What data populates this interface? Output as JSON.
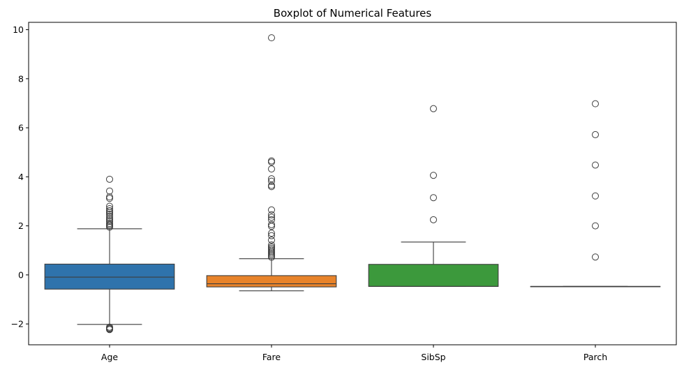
{
  "chart_data": {
    "type": "box",
    "title": "Boxplot of Numerical Features",
    "xlabel": "",
    "ylabel": "",
    "ylim": [
      -2.85,
      10.3
    ],
    "yticks": [
      -2,
      0,
      2,
      4,
      6,
      8,
      10
    ],
    "ytick_labels": [
      "−2",
      "0",
      "2",
      "4",
      "6",
      "8",
      "10"
    ],
    "grid": false,
    "categories": [
      "Age",
      "Fare",
      "SibSp",
      "Parch"
    ],
    "series": [
      {
        "color": "#2f73ac",
        "q1": -0.58,
        "median": -0.09,
        "q3": 0.44,
        "whisker_low": -2.02,
        "whisker_high": 1.88,
        "outliers": [
          -2.13,
          -2.17,
          -2.2,
          -2.23,
          1.95,
          2.0,
          2.05,
          2.1,
          2.18,
          2.25,
          2.32,
          2.4,
          2.48,
          2.55,
          2.62,
          2.7,
          2.8,
          3.12,
          3.18,
          3.42,
          3.9
        ]
      },
      {
        "color": "#e8832a",
        "q1": -0.49,
        "median": -0.36,
        "q3": -0.03,
        "whisker_low": -0.65,
        "whisker_high": 0.66,
        "outliers": [
          0.72,
          0.78,
          0.84,
          0.9,
          0.96,
          1.02,
          1.08,
          1.14,
          1.22,
          1.42,
          1.6,
          1.7,
          1.98,
          2.05,
          2.25,
          2.35,
          2.45,
          2.65,
          3.6,
          3.65,
          3.82,
          3.92,
          4.32,
          4.6,
          4.65,
          9.67
        ]
      },
      {
        "color": "#3c993c",
        "q1": -0.47,
        "median": -0.47,
        "q3": 0.43,
        "whisker_low": -0.47,
        "whisker_high": 1.34,
        "outliers": [
          2.25,
          3.15,
          4.06,
          6.78
        ]
      },
      {
        "color": "#c03d3e",
        "q1": -0.47,
        "median": -0.47,
        "q3": -0.47,
        "whisker_low": -0.47,
        "whisker_high": -0.47,
        "outliers": [
          0.73,
          2.0,
          3.22,
          4.48,
          5.72,
          6.98
        ]
      }
    ]
  }
}
